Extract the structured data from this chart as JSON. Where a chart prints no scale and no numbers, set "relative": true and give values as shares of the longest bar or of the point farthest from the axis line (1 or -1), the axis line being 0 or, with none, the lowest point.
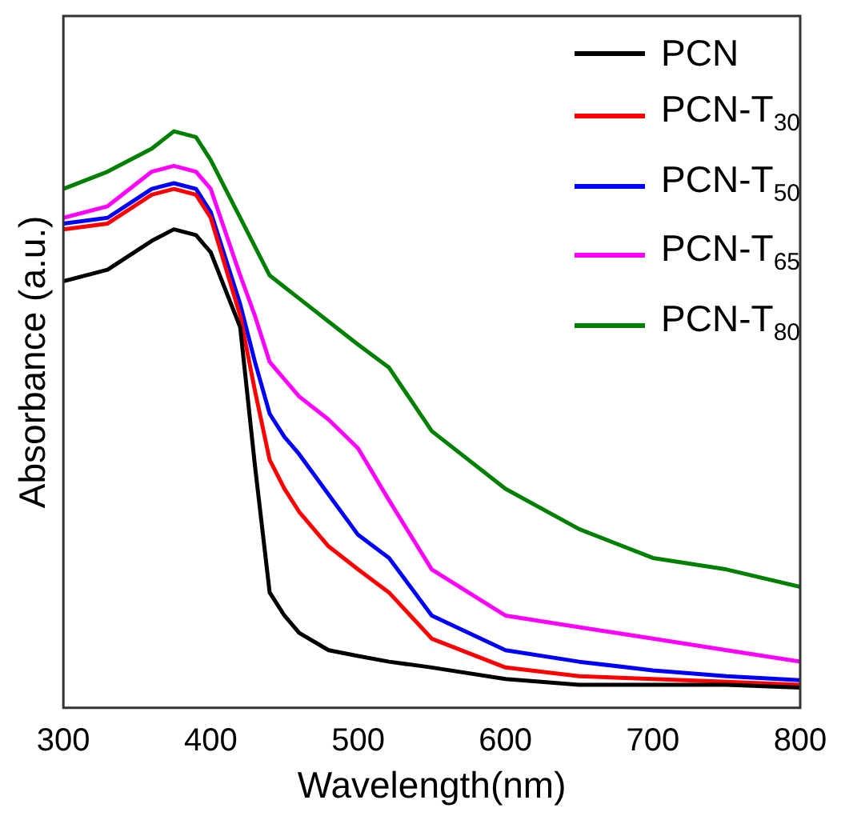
{
  "chart_data": {
    "type": "line",
    "xlabel": "Wavelength(nm)",
    "ylabel": "Absorbance (a.u.)",
    "relative": true,
    "xlim": [
      300,
      800
    ],
    "xticks": [
      300,
      400,
      500,
      600,
      700,
      800
    ],
    "grid": false,
    "legend": "top right",
    "marker": "none",
    "line_style": "solid",
    "x": [
      300,
      330,
      360,
      375,
      390,
      400,
      420,
      430,
      440,
      450,
      460,
      480,
      500,
      521,
      550,
      600,
      650,
      700,
      750,
      800
    ],
    "series": [
      {
        "name": "PCN",
        "color": "#000000",
        "values": [
          0.74,
          0.76,
          0.81,
          0.83,
          0.82,
          0.79,
          0.66,
          0.42,
          0.2,
          0.16,
          0.13,
          0.1,
          0.09,
          0.08,
          0.07,
          0.05,
          0.04,
          0.04,
          0.04,
          0.035
        ]
      },
      {
        "name": "PCN-T$_{30}$",
        "color": "#ff0000",
        "values": [
          0.83,
          0.84,
          0.89,
          0.9,
          0.89,
          0.85,
          0.68,
          0.55,
          0.43,
          0.38,
          0.34,
          0.28,
          0.24,
          0.2,
          0.12,
          0.07,
          0.055,
          0.05,
          0.045,
          0.04
        ]
      },
      {
        "name": "PCN-T$_{50}$",
        "color": "#0000ff",
        "values": [
          0.84,
          0.85,
          0.9,
          0.91,
          0.9,
          0.86,
          0.7,
          0.6,
          0.51,
          0.47,
          0.44,
          0.37,
          0.3,
          0.26,
          0.16,
          0.1,
          0.08,
          0.065,
          0.055,
          0.048
        ]
      },
      {
        "name": "PCN-T$_{65}$",
        "color": "#ff00ff",
        "values": [
          0.85,
          0.87,
          0.93,
          0.94,
          0.93,
          0.9,
          0.75,
          0.68,
          0.6,
          0.57,
          0.54,
          0.5,
          0.45,
          0.36,
          0.24,
          0.16,
          0.14,
          0.12,
          0.1,
          0.08
        ]
      },
      {
        "name": "PCN-T$_{80}$",
        "color": "#008000",
        "values": [
          0.9,
          0.93,
          0.97,
          1.0,
          0.99,
          0.95,
          0.85,
          0.8,
          0.75,
          0.73,
          0.71,
          0.67,
          0.63,
          0.59,
          0.48,
          0.38,
          0.31,
          0.26,
          0.24,
          0.21
        ]
      }
    ]
  }
}
